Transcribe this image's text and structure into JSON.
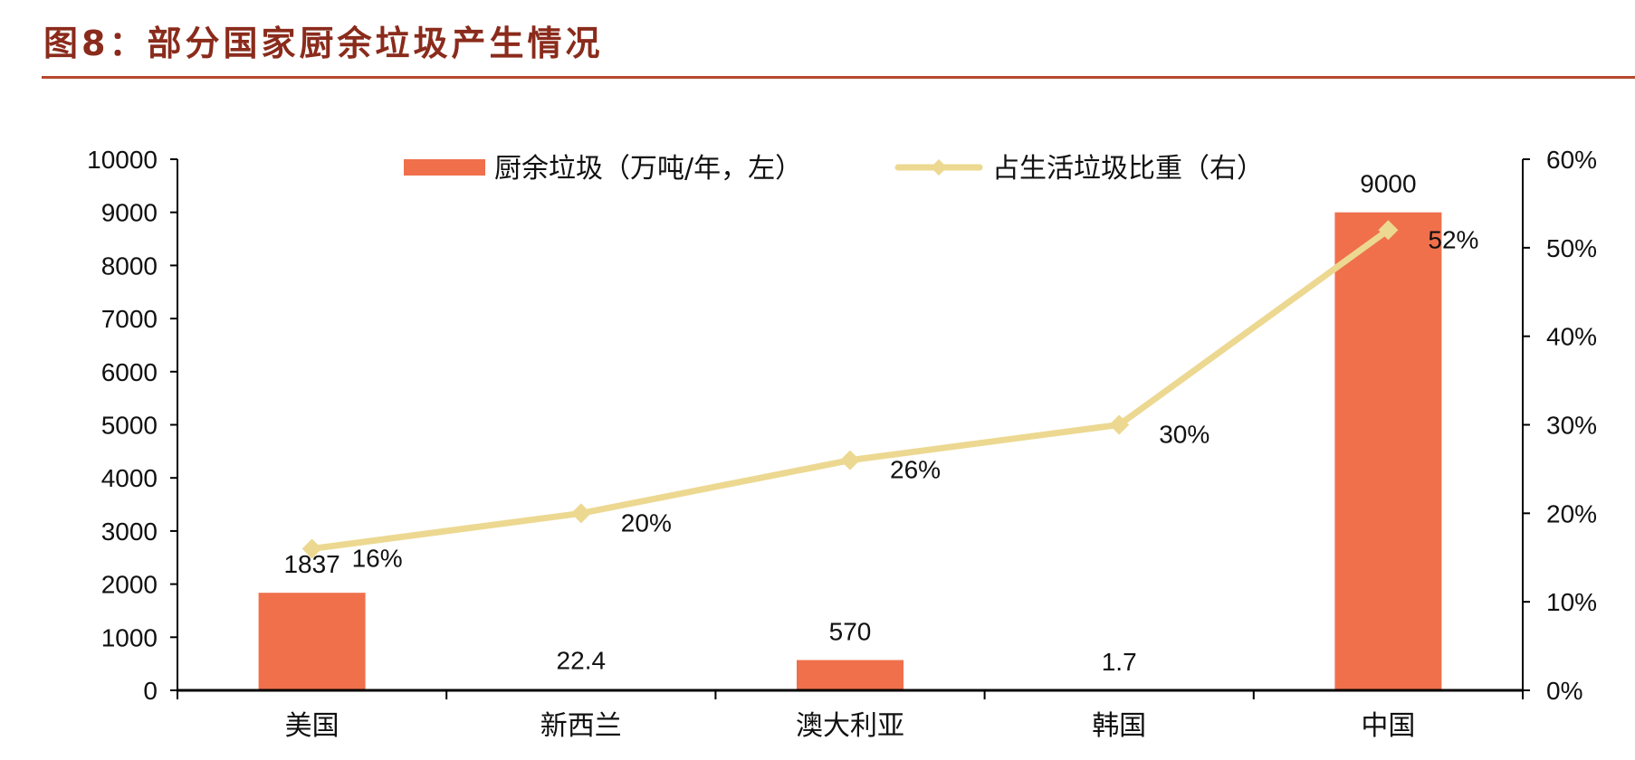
{
  "header": {
    "title": "图8：部分国家厨余垃圾产生情况"
  },
  "chart_data": {
    "type": "bar",
    "categories": [
      "美国",
      "新西兰",
      "澳大利亚",
      "韩国",
      "中国"
    ],
    "series": [
      {
        "name": "厨余垃圾（万吨/年，左）",
        "type": "bar",
        "axis": "left",
        "values": [
          1837,
          22.4,
          570,
          1.7,
          9000
        ],
        "labels": [
          "1837",
          "22.4",
          "570",
          "1.7",
          "9000"
        ],
        "color": "#f0704c"
      },
      {
        "name": "占生活垃圾比重（右）",
        "type": "line",
        "axis": "right",
        "values": [
          0.16,
          0.2,
          0.26,
          0.3,
          0.52
        ],
        "labels": [
          "16%",
          "20%",
          "26%",
          "30%",
          "52%"
        ],
        "color": "#ecd890"
      }
    ],
    "y_left": {
      "range": [
        0,
        10000
      ],
      "ticks": [
        "0",
        "1000",
        "2000",
        "3000",
        "4000",
        "5000",
        "6000",
        "7000",
        "8000",
        "9000",
        "10000"
      ]
    },
    "y_right": {
      "range": [
        0,
        0.6
      ],
      "ticks": [
        "0%",
        "10%",
        "20%",
        "30%",
        "40%",
        "50%",
        "60%"
      ]
    },
    "grid": false,
    "legend": "top-center"
  }
}
